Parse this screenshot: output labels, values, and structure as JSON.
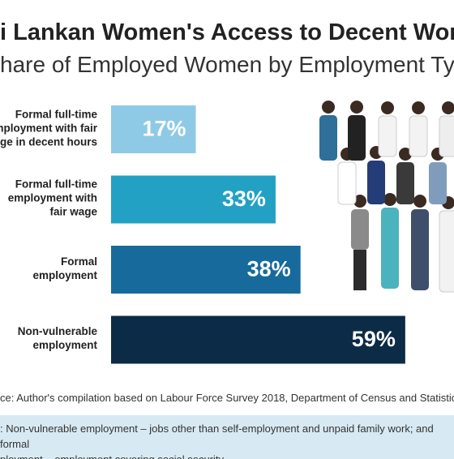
{
  "chart_data": {
    "type": "bar",
    "orientation": "horizontal",
    "title": "i Lankan Women's Access to Decent Worl",
    "subtitle": "hare of Employed Women by Employment Typ",
    "categories": [
      "Formal full-time\nmployment with fair\nge in decent hours",
      "Formal full-time\nemployment with\nfair wage",
      "Formal\nemployment",
      "Non-vulnerable\nemployment"
    ],
    "values": [
      17,
      33,
      38,
      59
    ],
    "value_labels": [
      "17%",
      "33%",
      "38%",
      "59%"
    ],
    "colors": [
      "#8ecae6",
      "#22a1c4",
      "#176a9c",
      "#0c2b47"
    ]
  },
  "source": "ce: Author's compilation based on Labour Force Survey 2018, Department of Census and Statistic",
  "note": ": Non-vulnerable employment – jobs other than self-employment and unpaid family work; and formal\nployment – employment covering social security."
}
